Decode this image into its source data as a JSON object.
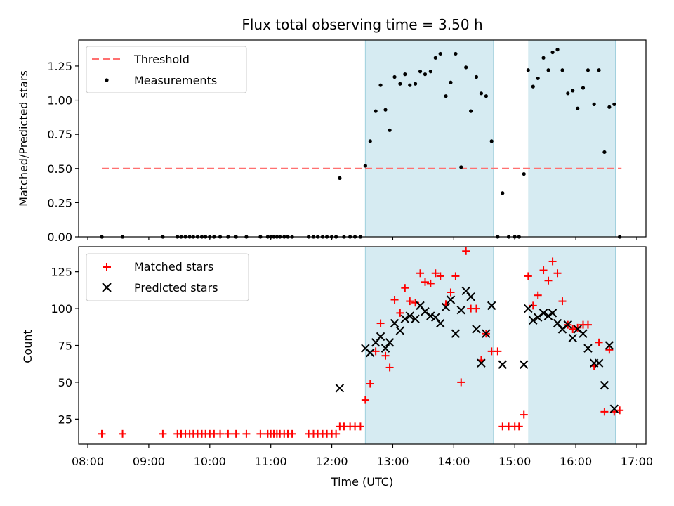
{
  "chart_data": [
    {
      "type": "scatter",
      "title": "Flux total observing time = 3.50 h",
      "xlabel": "",
      "ylabel": "Matched/Predicted stars",
      "ylim": [
        0,
        1.44
      ],
      "xlim": [
        7.85,
        17.15
      ],
      "yticks": [
        "0.00",
        "0.25",
        "0.50",
        "0.75",
        "1.00",
        "1.25"
      ],
      "ytick_values": [
        0,
        0.25,
        0.5,
        0.75,
        1.0,
        1.25
      ],
      "legend": [
        "Threshold",
        "Measurements"
      ],
      "legend_location": "top-left",
      "threshold": {
        "value": 0.5,
        "x_start": 8.23,
        "x_end": 16.75
      },
      "observing_windows": [
        [
          12.55,
          14.65
        ],
        [
          15.23,
          16.65
        ]
      ],
      "series": [
        {
          "name": "Measurements",
          "x": [
            8.23,
            8.57,
            9.23,
            9.47,
            9.53,
            9.6,
            9.67,
            9.73,
            9.8,
            9.87,
            9.93,
            10.0,
            10.07,
            10.17,
            10.3,
            10.43,
            10.6,
            10.83,
            10.95,
            11.0,
            11.05,
            11.1,
            11.15,
            11.22,
            11.28,
            11.35,
            11.62,
            11.7,
            11.77,
            11.85,
            11.92,
            12.0,
            12.07,
            12.13,
            12.2,
            12.3,
            12.38,
            12.47,
            12.55,
            12.63,
            12.72,
            12.8,
            12.88,
            12.95,
            13.03,
            13.12,
            13.2,
            13.28,
            13.37,
            13.45,
            13.53,
            13.62,
            13.7,
            13.78,
            13.87,
            13.95,
            14.03,
            14.12,
            14.2,
            14.28,
            14.37,
            14.45,
            14.53,
            14.62,
            14.72,
            14.8,
            14.9,
            15.0,
            15.07,
            15.15,
            15.22,
            15.3,
            15.38,
            15.47,
            15.55,
            15.62,
            15.7,
            15.78,
            15.87,
            15.95,
            16.03,
            16.12,
            16.2,
            16.3,
            16.38,
            16.47,
            16.55,
            16.63,
            16.72
          ],
          "y": [
            0.0,
            0.0,
            0.0,
            0.0,
            0.0,
            0.0,
            0.0,
            0.0,
            0.0,
            0.0,
            0.0,
            0.0,
            0.0,
            0.0,
            0.0,
            0.0,
            0.0,
            0.0,
            0.0,
            0.0,
            0.0,
            0.0,
            0.0,
            0.0,
            0.0,
            0.0,
            0.0,
            0.0,
            0.0,
            0.0,
            0.0,
            0.0,
            0.0,
            0.43,
            0.0,
            0.0,
            0.0,
            0.0,
            0.52,
            0.7,
            0.92,
            1.11,
            0.93,
            0.78,
            1.17,
            1.12,
            1.19,
            1.11,
            1.12,
            1.21,
            1.19,
            1.21,
            1.31,
            1.34,
            1.03,
            1.13,
            1.34,
            0.51,
            1.24,
            0.92,
            1.17,
            1.05,
            1.03,
            0.7,
            0.0,
            0.32,
            0.0,
            0.0,
            0.0,
            0.46,
            1.22,
            1.1,
            1.16,
            1.31,
            1.22,
            1.35,
            1.37,
            1.22,
            1.05,
            1.07,
            0.94,
            1.09,
            1.22,
            0.97,
            1.22,
            0.62,
            0.95,
            0.97,
            0.0
          ]
        }
      ]
    },
    {
      "type": "scatter",
      "title": "",
      "xlabel": "Time (UTC)",
      "ylabel": "Count",
      "ylim": [
        8,
        142
      ],
      "xlim": [
        7.85,
        17.15
      ],
      "yticks": [
        "25",
        "50",
        "75",
        "100",
        "125"
      ],
      "ytick_values": [
        25,
        50,
        75,
        100,
        125
      ],
      "xticks": [
        "08:00",
        "09:00",
        "10:00",
        "11:00",
        "12:00",
        "13:00",
        "14:00",
        "15:00",
        "16:00",
        "17:00"
      ],
      "xtick_values": [
        8,
        9,
        10,
        11,
        12,
        13,
        14,
        15,
        16,
        17
      ],
      "legend": [
        "Matched stars",
        "Predicted stars"
      ],
      "legend_location": "top-left",
      "observing_windows": [
        [
          12.55,
          14.65
        ],
        [
          15.23,
          16.65
        ]
      ],
      "series": [
        {
          "name": "Matched stars",
          "marker": "+",
          "color": "#ff0000",
          "x": [
            8.23,
            8.57,
            9.23,
            9.47,
            9.53,
            9.6,
            9.67,
            9.73,
            9.8,
            9.87,
            9.93,
            10.0,
            10.07,
            10.17,
            10.3,
            10.43,
            10.6,
            10.83,
            10.95,
            11.0,
            11.05,
            11.1,
            11.15,
            11.22,
            11.28,
            11.35,
            11.62,
            11.7,
            11.77,
            11.85,
            11.92,
            12.0,
            12.07,
            12.13,
            12.2,
            12.3,
            12.38,
            12.47,
            12.55,
            12.63,
            12.72,
            12.8,
            12.88,
            12.95,
            13.03,
            13.12,
            13.2,
            13.28,
            13.37,
            13.45,
            13.53,
            13.62,
            13.7,
            13.78,
            13.87,
            13.95,
            14.03,
            14.12,
            14.2,
            14.28,
            14.37,
            14.45,
            14.53,
            14.62,
            14.72,
            14.8,
            14.9,
            15.0,
            15.07,
            15.15,
            15.22,
            15.3,
            15.38,
            15.47,
            15.55,
            15.62,
            15.7,
            15.78,
            15.87,
            15.95,
            16.03,
            16.12,
            16.2,
            16.3,
            16.38,
            16.47,
            16.55,
            16.63,
            16.72
          ],
          "y": [
            15,
            15,
            15,
            15,
            15,
            15,
            15,
            15,
            15,
            15,
            15,
            15,
            15,
            15,
            15,
            15,
            15,
            15,
            15,
            15,
            15,
            15,
            15,
            15,
            15,
            15,
            15,
            15,
            15,
            15,
            15,
            15,
            15,
            20,
            20,
            20,
            20,
            20,
            38,
            49,
            71,
            90,
            68,
            60,
            106,
            97,
            114,
            105,
            104,
            124,
            118,
            117,
            124,
            122,
            103,
            111,
            122,
            50,
            139,
            100,
            100,
            65,
            83,
            71,
            71,
            20,
            20,
            20,
            20,
            28,
            122,
            102,
            109,
            126,
            119,
            132,
            124,
            105,
            89,
            86,
            87,
            89,
            89,
            61,
            77,
            30,
            72,
            30,
            31
          ]
        },
        {
          "name": "Predicted stars",
          "marker": "x",
          "color": "#000000",
          "x": [
            12.13,
            12.55,
            12.63,
            12.72,
            12.8,
            12.88,
            12.95,
            13.03,
            13.12,
            13.2,
            13.28,
            13.37,
            13.45,
            13.53,
            13.62,
            13.7,
            13.78,
            13.87,
            13.95,
            14.03,
            14.12,
            14.2,
            14.28,
            14.37,
            14.45,
            14.53,
            14.62,
            14.8,
            15.15,
            15.22,
            15.3,
            15.38,
            15.47,
            15.55,
            15.62,
            15.7,
            15.78,
            15.87,
            15.95,
            16.03,
            16.12,
            16.2,
            16.3,
            16.38,
            16.47,
            16.55,
            16.63
          ],
          "y": [
            46,
            73,
            70,
            77,
            81,
            73,
            77,
            90,
            85,
            93,
            95,
            93,
            102,
            98,
            95,
            94,
            90,
            101,
            106,
            83,
            99,
            112,
            108,
            86,
            63,
            83,
            102,
            62,
            62,
            100,
            92,
            94,
            97,
            95,
            97,
            90,
            86,
            89,
            80,
            86,
            83,
            73,
            63,
            63,
            48,
            75,
            32
          ]
        }
      ]
    }
  ]
}
